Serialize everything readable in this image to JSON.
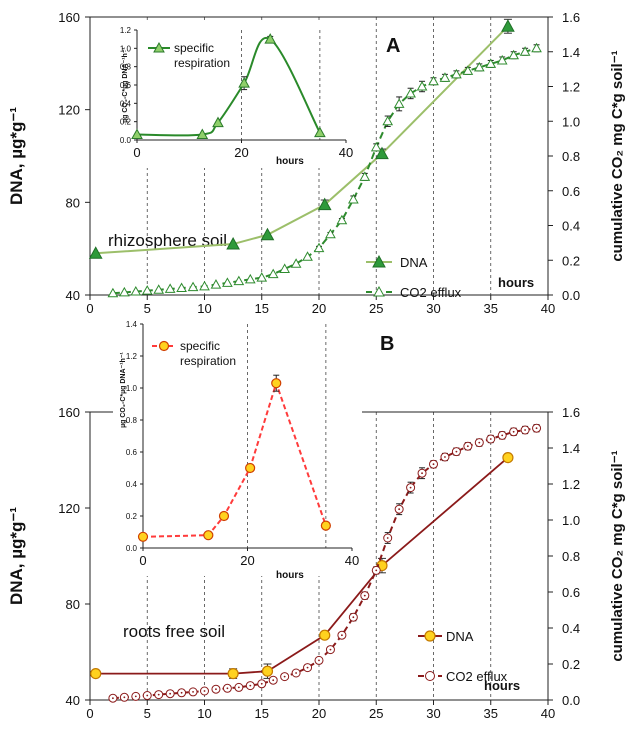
{
  "colors": {
    "green_line": "#9cbf6a",
    "green_dark": "#2e8b2e",
    "green_marker": "#2e9a3a",
    "inset_green": "#2a8a2a",
    "maroon": "#8b1a1a",
    "yellow_marker": "#ffd21f",
    "inset_red": "#ff3b3b",
    "grid_dash": "#444444"
  },
  "chart_data": [
    {
      "id": "A",
      "type": "line",
      "panel_letter": "A",
      "annotation": "rhizosphere soil",
      "xlabel": "hours",
      "ylabel": "DNA, µg*g⁻¹",
      "y2label": "cumulative CO₂ mg C*g soil⁻¹",
      "xlim": [
        0,
        40
      ],
      "xticks": [
        "0",
        "5",
        "10",
        "15",
        "20",
        "25",
        "30",
        "35",
        "40"
      ],
      "ylim": [
        40,
        160
      ],
      "yticks": [
        "40",
        "80",
        "120",
        "160"
      ],
      "y2lim": [
        0,
        1.6
      ],
      "y2ticks": [
        "0.0",
        "0.2",
        "0.4",
        "0.6",
        "0.8",
        "1.0",
        "1.2",
        "1.4",
        "1.6"
      ],
      "vlines": [
        5,
        10,
        15,
        20,
        25,
        30,
        35
      ],
      "legend": [
        "DNA",
        "CO2 efflux"
      ],
      "dna": {
        "name": "DNA",
        "x": [
          0.5,
          12.5,
          15.5,
          20.5,
          25.5,
          36.5
        ],
        "y": [
          58,
          62,
          66,
          79,
          101,
          156
        ],
        "err": [
          0,
          0,
          0,
          2,
          2,
          3
        ]
      },
      "co2": {
        "name": "CO2 efflux",
        "x": [
          2,
          3,
          4,
          5,
          6,
          7,
          8,
          9,
          10,
          11,
          12,
          13,
          14,
          15,
          16,
          17,
          18,
          19,
          20,
          21,
          22,
          23,
          24,
          25,
          26,
          27,
          28,
          29,
          30,
          31,
          32,
          33,
          34,
          35,
          36,
          37,
          38,
          39
        ],
        "y": [
          0.01,
          0.015,
          0.02,
          0.025,
          0.03,
          0.035,
          0.04,
          0.045,
          0.05,
          0.06,
          0.07,
          0.08,
          0.09,
          0.1,
          0.12,
          0.15,
          0.18,
          0.22,
          0.27,
          0.35,
          0.43,
          0.55,
          0.68,
          0.85,
          1.0,
          1.1,
          1.16,
          1.2,
          1.23,
          1.25,
          1.27,
          1.29,
          1.31,
          1.33,
          1.35,
          1.38,
          1.4,
          1.42
        ],
        "err": [
          0,
          0,
          0,
          0,
          0,
          0,
          0,
          0,
          0,
          0,
          0,
          0,
          0,
          0,
          0,
          0,
          0,
          0,
          0.01,
          0.01,
          0.01,
          0.02,
          0.02,
          0.02,
          0.03,
          0.04,
          0.03,
          0.03,
          0.02,
          0.02,
          0.02,
          0.02,
          0.02,
          0.02,
          0.02,
          0.02,
          0.02,
          0.02
        ]
      },
      "inset": {
        "type": "line",
        "xlim": [
          0,
          40
        ],
        "xticks": [
          "0",
          "20",
          "40"
        ],
        "ylim": [
          0,
          1.2
        ],
        "yticks": [
          "0.0",
          "0.2",
          "0.4",
          "0.6",
          "0.8",
          "1.0",
          "1.2"
        ],
        "xlabel": "hours",
        "ylabel": "µg CO₂-C*µg DNA⁻¹h⁻¹",
        "legend": [
          "specific",
          "respiration"
        ],
        "vlines": [
          20,
          35
        ],
        "x": [
          0,
          12.5,
          15.5,
          20.5,
          25.5,
          35
        ],
        "y": [
          0.06,
          0.06,
          0.19,
          0.62,
          1.1,
          0.08
        ],
        "err": [
          0,
          0,
          0,
          0.07,
          0.03,
          0
        ]
      }
    },
    {
      "id": "B",
      "type": "line",
      "panel_letter": "B",
      "annotation": "roots free soil",
      "xlabel": "hours",
      "ylabel": "DNA, µg*g⁻¹",
      "y2label": "cumulative CO₂ mg C*g soil⁻¹",
      "xlim": [
        0,
        40
      ],
      "xticks": [
        "0",
        "5",
        "10",
        "15",
        "20",
        "25",
        "30",
        "35",
        "40"
      ],
      "ylim": [
        40,
        160
      ],
      "yticks": [
        "40",
        "80",
        "120",
        "160"
      ],
      "y2lim": [
        0,
        1.6
      ],
      "y2ticks": [
        "0.0",
        "0.2",
        "0.4",
        "0.6",
        "0.8",
        "1.0",
        "1.2",
        "1.4",
        "1.6"
      ],
      "vlines": [
        5,
        10,
        15,
        20,
        25,
        30,
        35
      ],
      "legend": [
        "DNA",
        "CO2 efflux"
      ],
      "dna": {
        "name": "DNA",
        "x": [
          0.5,
          12.5,
          15.5,
          20.5,
          25.5,
          36.5
        ],
        "y": [
          51,
          51,
          52,
          67,
          96,
          141
        ],
        "err": [
          0,
          2,
          3,
          0,
          3,
          0
        ]
      },
      "co2": {
        "name": "CO2 efflux",
        "x": [
          2,
          3,
          4,
          5,
          6,
          7,
          8,
          9,
          10,
          11,
          12,
          13,
          14,
          15,
          16,
          17,
          18,
          19,
          20,
          21,
          22,
          23,
          24,
          25,
          26,
          27,
          28,
          29,
          30,
          31,
          32,
          33,
          34,
          35,
          36,
          37,
          38,
          39
        ],
        "y": [
          0.01,
          0.015,
          0.02,
          0.025,
          0.03,
          0.035,
          0.04,
          0.045,
          0.05,
          0.06,
          0.065,
          0.07,
          0.08,
          0.09,
          0.11,
          0.13,
          0.15,
          0.18,
          0.22,
          0.28,
          0.36,
          0.46,
          0.58,
          0.72,
          0.9,
          1.06,
          1.18,
          1.26,
          1.31,
          1.35,
          1.38,
          1.41,
          1.43,
          1.45,
          1.47,
          1.49,
          1.5,
          1.51
        ],
        "err": [
          0,
          0,
          0,
          0,
          0,
          0,
          0,
          0,
          0,
          0,
          0,
          0,
          0,
          0,
          0,
          0,
          0,
          0,
          0.01,
          0.01,
          0.01,
          0.02,
          0.02,
          0.02,
          0.03,
          0.03,
          0.03,
          0.03,
          0.02,
          0.02,
          0.02,
          0.02,
          0.02,
          0.02,
          0.02,
          0.02,
          0.02,
          0.02
        ]
      },
      "inset": {
        "type": "line",
        "xlim": [
          0,
          40
        ],
        "xticks": [
          "0",
          "20",
          "40"
        ],
        "ylim": [
          0,
          1.4
        ],
        "yticks": [
          "0.0",
          "0.2",
          "0.4",
          "0.6",
          "0.8",
          "1.0",
          "1.2",
          "1.4"
        ],
        "xlabel": "hours",
        "ylabel": "µg CO₂-C*µg DNA⁻¹h⁻¹",
        "legend": [
          "specific",
          "respiration"
        ],
        "vlines": [
          20,
          35
        ],
        "x": [
          0,
          12.5,
          15.5,
          20.5,
          25.5,
          35
        ],
        "y": [
          0.07,
          0.08,
          0.2,
          0.5,
          1.03,
          0.14
        ],
        "err": [
          0,
          0,
          0,
          0,
          0.05,
          0
        ]
      }
    }
  ]
}
